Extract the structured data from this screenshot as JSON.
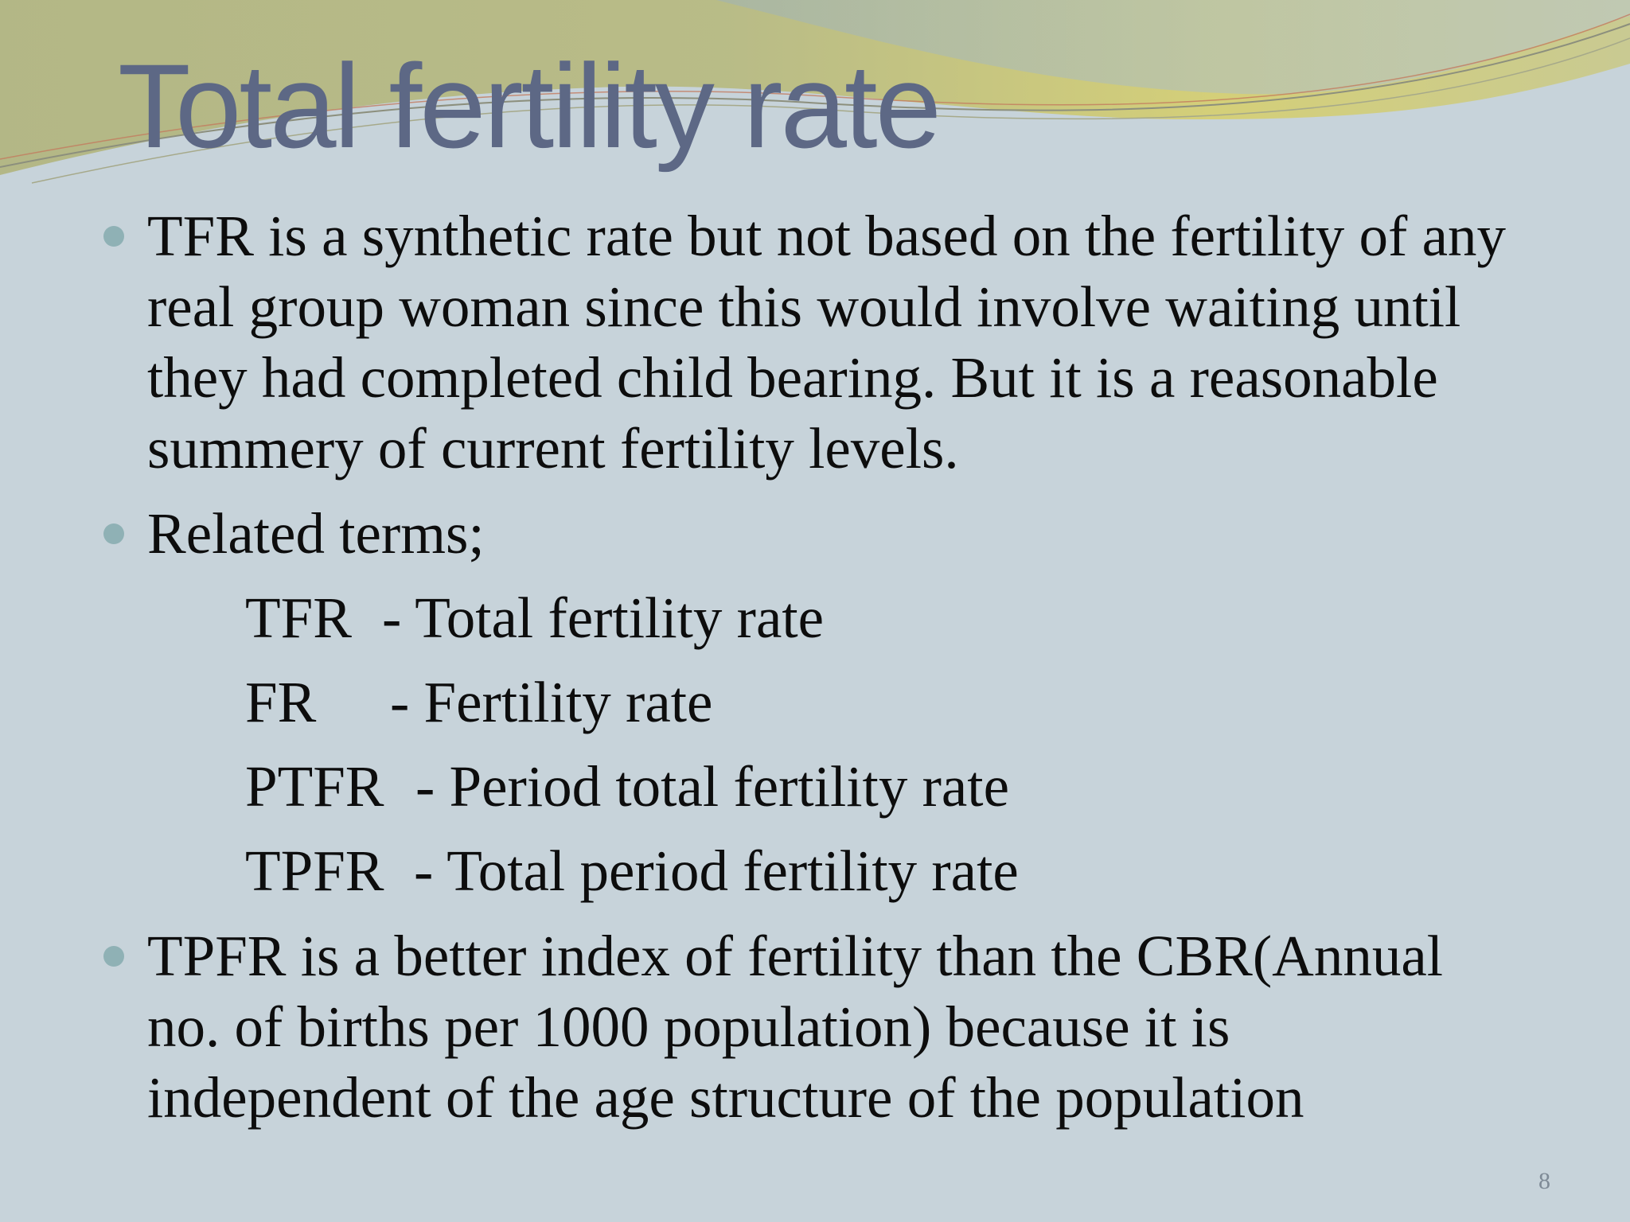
{
  "slide": {
    "title": "Total fertility rate",
    "page_number": "8"
  },
  "bullets": [
    {
      "lines": [
        "TFR is a synthetic rate but not based on the fertility of any",
        "real group woman since this would involve waiting until",
        "they had completed child bearing. But it is a reasonable",
        "summery of current fertility levels."
      ]
    },
    {
      "lines": [
        "Related terms;"
      ]
    },
    {
      "lines": [
        "TPFR is a better index of fertility than the CBR(Annual",
        "no. of births per 1000 population) because it is",
        "independent of the age structure of the population"
      ]
    }
  ],
  "terms": [
    {
      "abbr": "TFR",
      "definition": "- Total fertility rate"
    },
    {
      "abbr": "FR",
      "definition": "-  Fertility rate"
    },
    {
      "abbr": "PTFR",
      "definition": "- Period total fertility rate"
    },
    {
      "abbr": "TPFR",
      "definition": "- Total period fertility rate"
    }
  ],
  "theme": {
    "background": "#c7d3da",
    "title_color": "#5d6885",
    "bullet_color": "#8fb1b5",
    "wave_olive": "#b3b57c",
    "wave_yellow": "#d8cf6a",
    "text_color": "#0d0d0d"
  }
}
